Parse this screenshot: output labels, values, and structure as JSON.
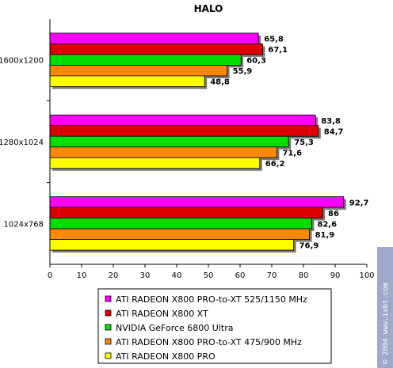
{
  "chart_data": {
    "type": "bar",
    "orientation": "horizontal",
    "title": "HALO",
    "categories": [
      "1600x1200",
      "1280x1024",
      "1024x768"
    ],
    "xlim": [
      0,
      100
    ],
    "xticks": [
      "0",
      "10",
      "20",
      "30",
      "40",
      "50",
      "60",
      "70",
      "80",
      "90",
      "100"
    ],
    "grid": false,
    "legend_position": "bottom",
    "series": [
      {
        "name": "ATI RADEON X800 PRO-to-XT 525/1150 MHz",
        "color": "#ff00ff",
        "values": [
          65.8,
          83.8,
          92.7
        ],
        "labels": [
          "65,8",
          "83,8",
          "92,7"
        ]
      },
      {
        "name": "ATI RADEON X800 XT",
        "color": "#dd0000",
        "values": [
          67.1,
          84.7,
          86
        ],
        "labels": [
          "67,1",
          "84,7",
          "86"
        ]
      },
      {
        "name": "NVIDIA GeForce 6800 Ultra",
        "color": "#00dd00",
        "values": [
          60.3,
          75.3,
          82.6
        ],
        "labels": [
          "60,3",
          "75,3",
          "82,6"
        ]
      },
      {
        "name": "ATI RADEON X800 PRO-to-XT 475/900 MHz",
        "color": "#ff8800",
        "values": [
          55.9,
          71.6,
          81.9
        ],
        "labels": [
          "55,9",
          "71,6",
          "81,9"
        ]
      },
      {
        "name": "ATI RADEON X800 PRO",
        "color": "#ffff00",
        "values": [
          48.8,
          66.2,
          76.9
        ],
        "labels": [
          "48,8",
          "66,2",
          "76,9"
        ]
      }
    ]
  },
  "watermark": "© 2004 www.ixbt.com"
}
